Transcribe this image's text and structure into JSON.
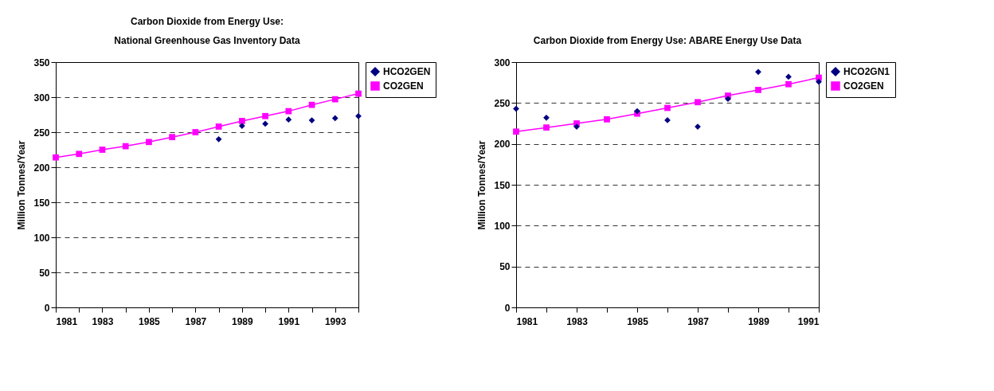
{
  "chart_data": [
    {
      "type": "line",
      "title": "Carbon Dioxide from Energy Use: National Greenhouse Gas Inventory Data",
      "ylabel": "Million Tonnes/Year",
      "x": [
        1981,
        1982,
        1983,
        1984,
        1985,
        1986,
        1987,
        1988,
        1989,
        1990,
        1991,
        1992,
        1993,
        1994
      ],
      "series": [
        {
          "name": "HCO2GEN",
          "type": "scatter",
          "marker": "diamond",
          "color": "#000080",
          "values": [
            null,
            null,
            null,
            null,
            null,
            null,
            null,
            240,
            259,
            262,
            268,
            267,
            270,
            273
          ]
        },
        {
          "name": "CO2GEN",
          "type": "line",
          "marker": "square",
          "color": "#ff00ff",
          "values": [
            214,
            219,
            225,
            230,
            236,
            243,
            250,
            258,
            266,
            273,
            280,
            289,
            297,
            305
          ]
        }
      ],
      "xlim": [
        1981,
        1994
      ],
      "xticks": [
        1981,
        {
          "value": 1982,
          "label": null
        },
        1983,
        {
          "value": 1984,
          "label": null
        },
        1985,
        {
          "value": 1986,
          "label": null
        },
        1987,
        {
          "value": 1988,
          "label": null
        },
        1989,
        {
          "value": 1990,
          "label": null
        },
        1991,
        {
          "value": 1992,
          "label": null
        },
        1993,
        {
          "value": 1994,
          "label": null
        }
      ],
      "ylim": [
        0,
        350
      ],
      "yticks": [
        0,
        50,
        100,
        150,
        200,
        250,
        300,
        350
      ],
      "grid": "y",
      "legend": "right"
    },
    {
      "type": "line",
      "title": "Carbon Dioxide from Energy Use: ABARE Energy Use Data",
      "ylabel": "Million Tonnes/Year",
      "x": [
        1981,
        1982,
        1983,
        1984,
        1985,
        1986,
        1987,
        1988,
        1989,
        1990,
        1991
      ],
      "series": [
        {
          "name": "HCO2GN1",
          "type": "scatter",
          "marker": "diamond",
          "color": "#000080",
          "values": [
            243,
            232,
            221,
            null,
            240,
            229,
            221,
            255,
            288,
            282,
            276
          ]
        },
        {
          "name": "CO2GEN",
          "type": "line",
          "marker": "square",
          "color": "#ff00ff",
          "values": [
            215,
            220,
            225,
            230,
            237,
            244,
            251,
            259,
            266,
            273,
            281
          ]
        }
      ],
      "xlim": [
        1981,
        1991
      ],
      "xticks": [
        1981,
        {
          "value": 1982,
          "label": null
        },
        1983,
        {
          "value": 1984,
          "label": null
        },
        1985,
        {
          "value": 1986,
          "label": null
        },
        1987,
        {
          "value": 1988,
          "label": null
        },
        1989,
        {
          "value": 1990,
          "label": null
        },
        1991
      ],
      "ylim": [
        0,
        300
      ],
      "yticks": [
        0,
        50,
        100,
        150,
        200,
        250,
        300
      ],
      "grid": "y",
      "legend": "right"
    }
  ]
}
